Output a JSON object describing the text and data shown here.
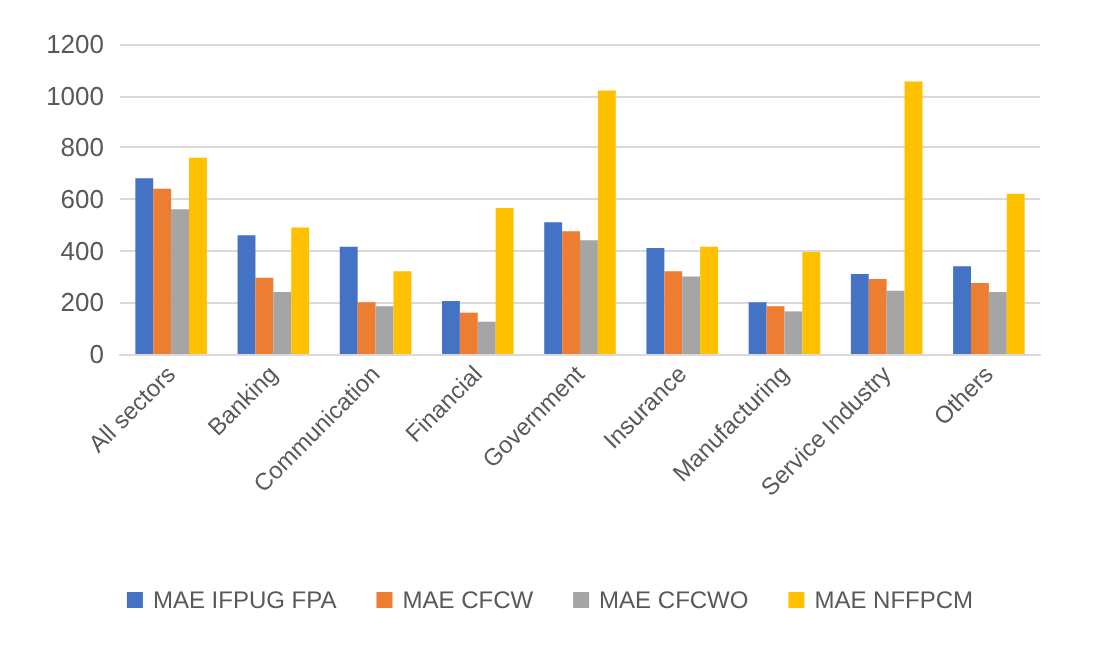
{
  "chart_data": {
    "type": "bar",
    "categories": [
      "All sectors",
      "Banking",
      "Communication",
      "Financial",
      "Government",
      "Insurance",
      "Manufacturing",
      "Service Industry",
      "Others"
    ],
    "series": [
      {
        "name": "MAE IFPUG FPA",
        "color": "#4472c4",
        "values": [
          680,
          460,
          415,
          205,
          510,
          410,
          200,
          310,
          340
        ]
      },
      {
        "name": "MAE CFCW",
        "color": "#ed7d31",
        "values": [
          640,
          295,
          200,
          160,
          475,
          320,
          185,
          290,
          275
        ]
      },
      {
        "name": "MAE CFCWO",
        "color": "#a5a5a5",
        "values": [
          560,
          240,
          185,
          125,
          440,
          300,
          165,
          245,
          240
        ]
      },
      {
        "name": "MAE NFFPCM",
        "color": "#ffc000",
        "values": [
          760,
          490,
          320,
          565,
          1020,
          415,
          395,
          1055,
          620
        ]
      }
    ],
    "ylim": [
      0,
      1200
    ],
    "yticks": [
      0,
      200,
      400,
      600,
      800,
      1000,
      1200
    ],
    "grid": "y",
    "legend": "bottom"
  }
}
